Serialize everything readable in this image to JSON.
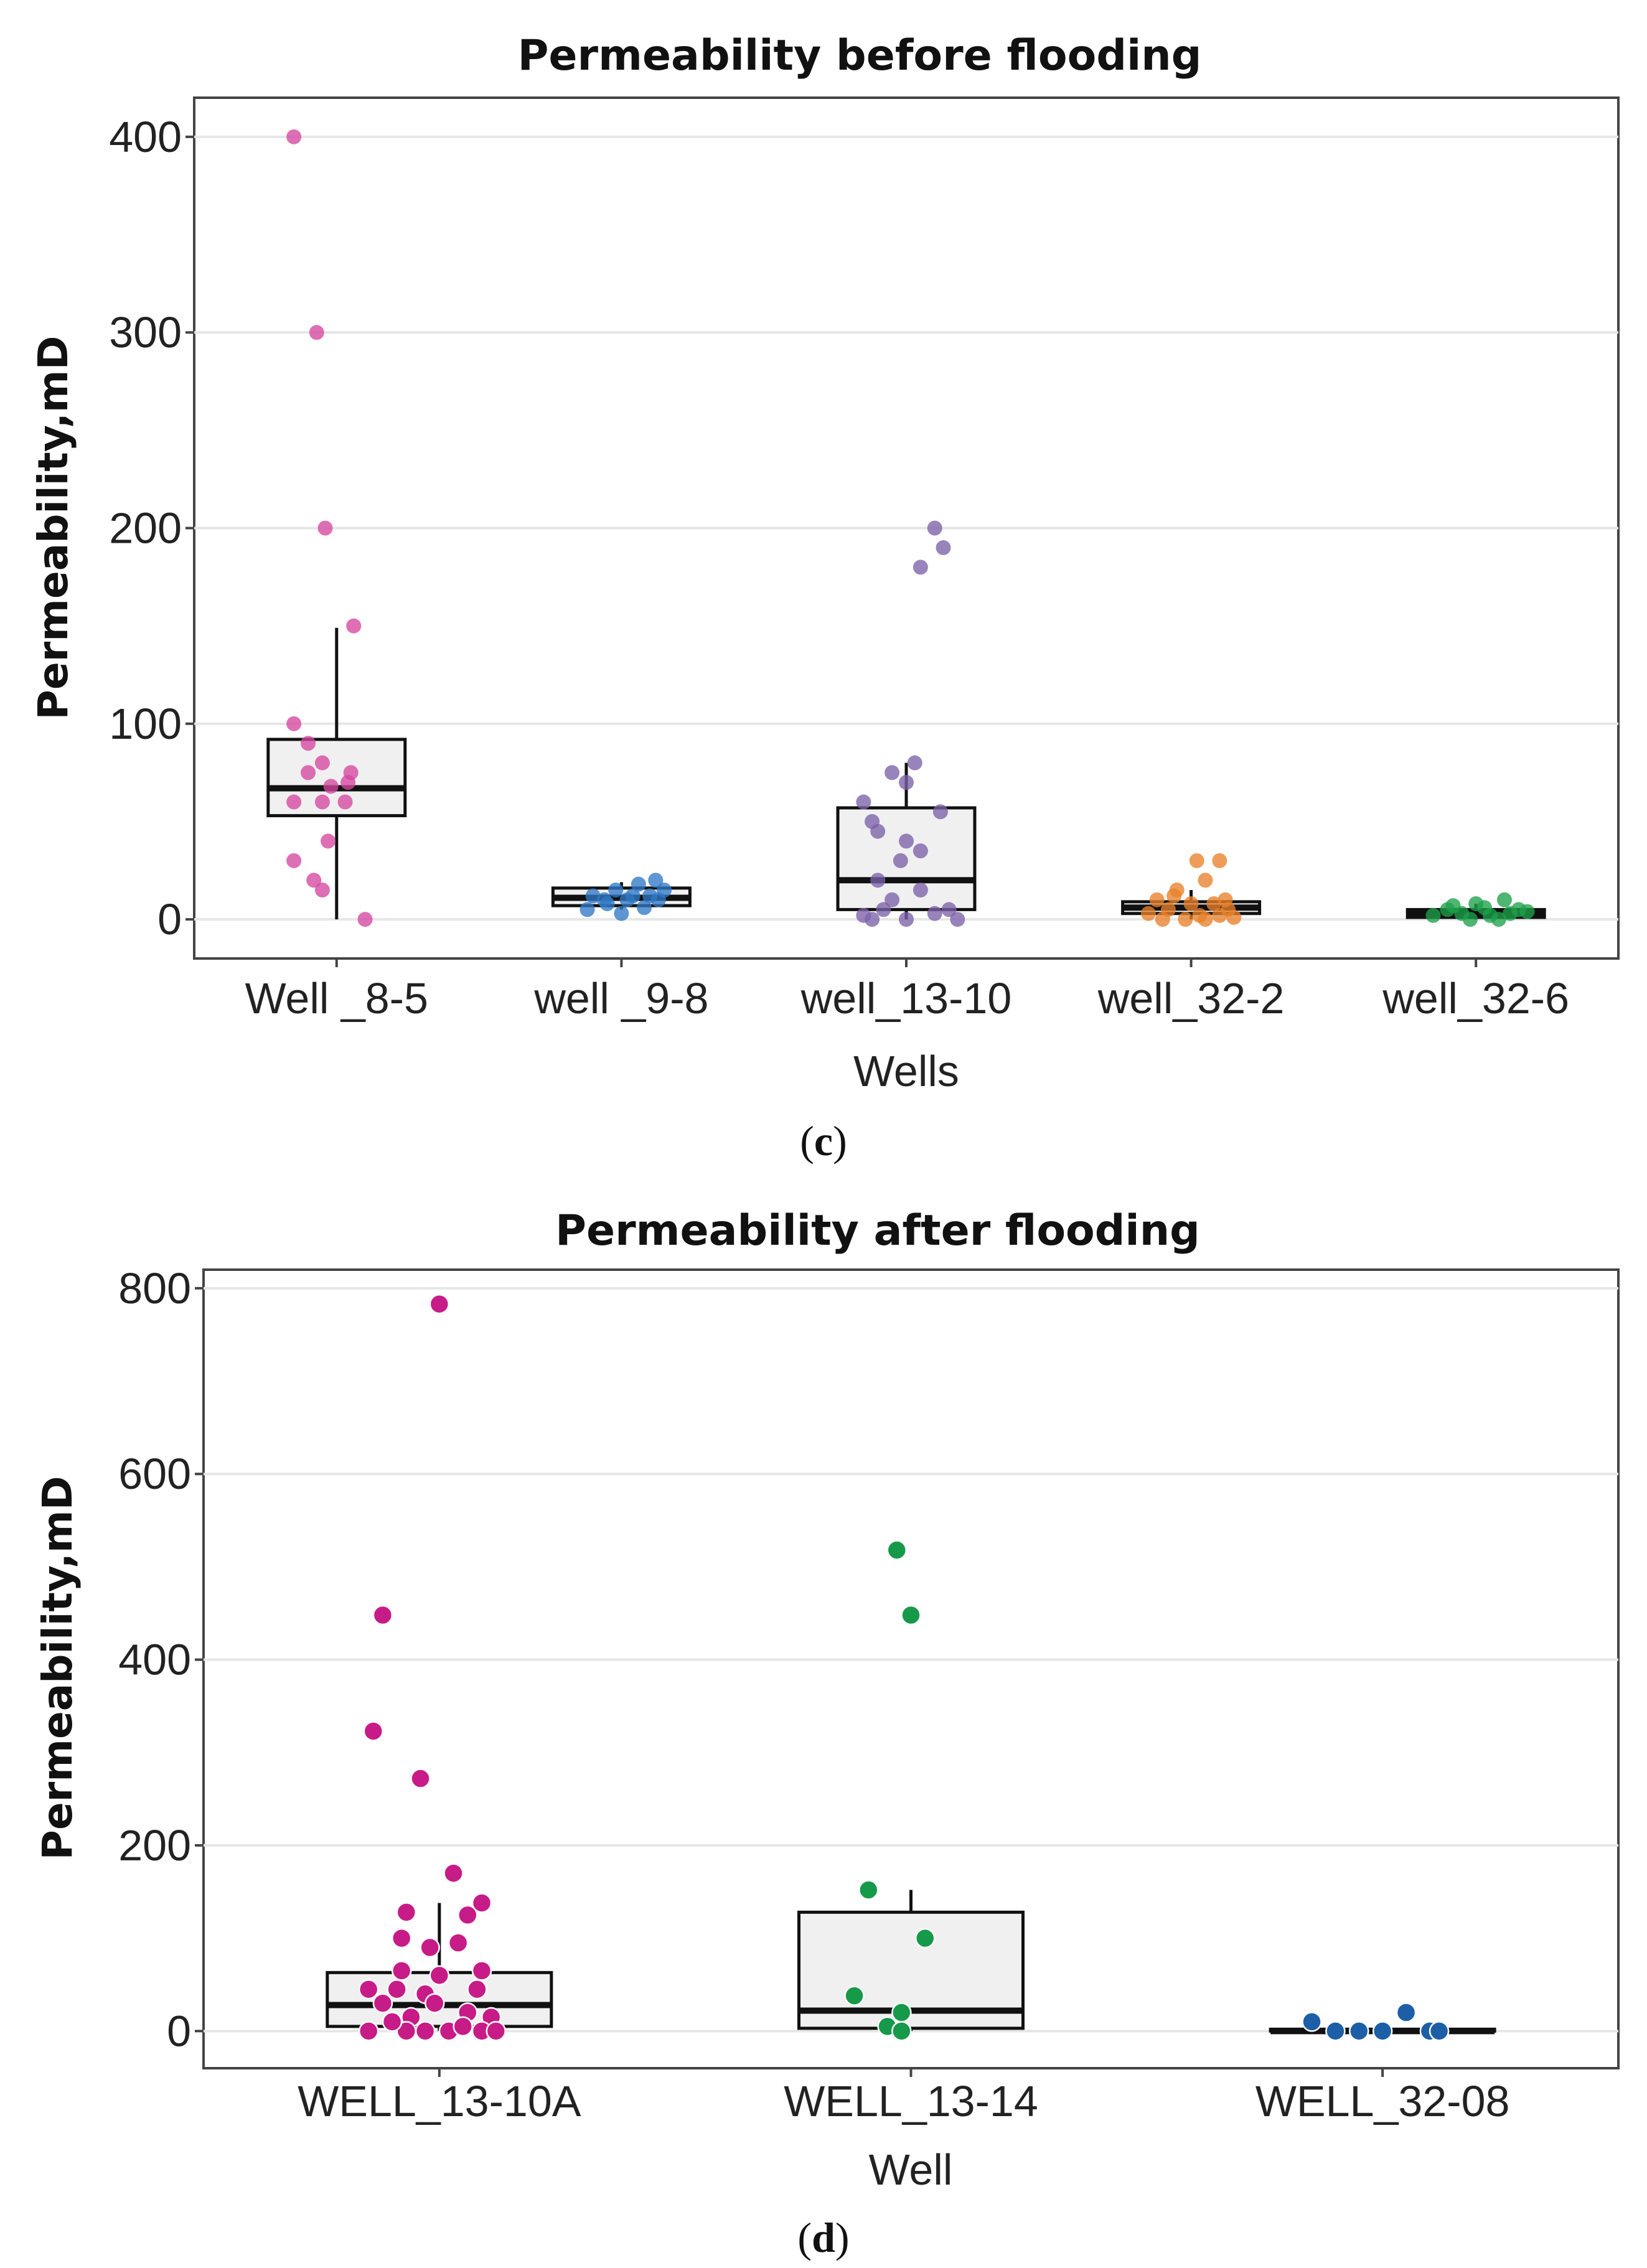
{
  "chart_data": [
    {
      "type": "box",
      "panel": "c",
      "title": "Permeability before flooding",
      "xlabel": "Wells",
      "ylabel": "Permeability,mD",
      "ylim": [
        -20,
        420
      ],
      "yticks": [
        0,
        100,
        200,
        300,
        400
      ],
      "categories": [
        "Well _8-5",
        "well _9-8",
        "well_13-10",
        "well_32-2",
        "well_32-6"
      ],
      "boxes": [
        {
          "q1": 53,
          "median": 67,
          "q3": 92,
          "whisker_low": 0,
          "whisker_high": 149
        },
        {
          "q1": 7,
          "median": 11,
          "q3": 16,
          "whisker_low": 5,
          "whisker_high": 19
        },
        {
          "q1": 5,
          "median": 20,
          "q3": 57,
          "whisker_low": 0,
          "whisker_high": 80
        },
        {
          "q1": 3,
          "median": 6,
          "q3": 9,
          "whisker_low": 0,
          "whisker_high": 15
        },
        {
          "q1": 1,
          "median": 3,
          "q3": 5,
          "whisker_low": 0,
          "whisker_high": 8
        }
      ],
      "colors": [
        "#d6479f",
        "#2f79c5",
        "#7b61a8",
        "#e8812a",
        "#1ea24a"
      ],
      "points": [
        [
          [
            -0.15,
            400
          ],
          [
            -0.07,
            300
          ],
          [
            -0.04,
            200
          ],
          [
            0.06,
            150
          ],
          [
            -0.15,
            100
          ],
          [
            -0.1,
            90
          ],
          [
            -0.05,
            80
          ],
          [
            0.05,
            75
          ],
          [
            -0.1,
            75
          ],
          [
            0.04,
            70
          ],
          [
            -0.02,
            68
          ],
          [
            -0.15,
            60
          ],
          [
            -0.05,
            60
          ],
          [
            0.03,
            60
          ],
          [
            -0.03,
            40
          ],
          [
            -0.15,
            30
          ],
          [
            -0.08,
            20
          ],
          [
            -0.05,
            15
          ],
          [
            0.1,
            0
          ]
        ],
        [
          [
            -0.12,
            5
          ],
          [
            -0.05,
            8
          ],
          [
            0.02,
            10
          ],
          [
            0.1,
            12
          ],
          [
            0.15,
            15
          ],
          [
            -0.1,
            12
          ],
          [
            0.06,
            18
          ],
          [
            0.12,
            20
          ],
          [
            -0.02,
            15
          ],
          [
            0.08,
            6
          ],
          [
            0.0,
            3
          ],
          [
            -0.06,
            10
          ],
          [
            0.13,
            10
          ],
          [
            0.04,
            12
          ]
        ],
        [
          [
            0.1,
            200
          ],
          [
            0.13,
            190
          ],
          [
            0.05,
            180
          ],
          [
            -0.05,
            75
          ],
          [
            0.0,
            70
          ],
          [
            -0.15,
            60
          ],
          [
            0.03,
            80
          ],
          [
            0.12,
            55
          ],
          [
            -0.12,
            50
          ],
          [
            -0.1,
            45
          ],
          [
            0.0,
            40
          ],
          [
            0.05,
            35
          ],
          [
            -0.02,
            30
          ],
          [
            -0.1,
            20
          ],
          [
            0.05,
            15
          ],
          [
            -0.05,
            10
          ],
          [
            0.15,
            5
          ],
          [
            -0.15,
            2
          ],
          [
            0.0,
            0
          ],
          [
            -0.12,
            0
          ],
          [
            0.1,
            3
          ],
          [
            0.18,
            0
          ],
          [
            -0.08,
            5
          ]
        ],
        [
          [
            0.1,
            30
          ],
          [
            0.02,
            30
          ],
          [
            0.05,
            20
          ],
          [
            -0.05,
            15
          ],
          [
            -0.12,
            10
          ],
          [
            0.0,
            8
          ],
          [
            0.08,
            8
          ],
          [
            -0.08,
            5
          ],
          [
            0.13,
            5
          ],
          [
            -0.15,
            3
          ],
          [
            0.03,
            2
          ],
          [
            0.1,
            2
          ],
          [
            -0.02,
            0
          ],
          [
            -0.1,
            0
          ],
          [
            0.05,
            0
          ],
          [
            0.15,
            1
          ],
          [
            -0.06,
            12
          ],
          [
            0.12,
            10
          ]
        ],
        [
          [
            -0.1,
            5
          ],
          [
            -0.05,
            3
          ],
          [
            0.0,
            8
          ],
          [
            0.05,
            2
          ],
          [
            0.1,
            10
          ],
          [
            0.15,
            5
          ],
          [
            -0.15,
            2
          ],
          [
            0.08,
            0
          ],
          [
            -0.02,
            0
          ],
          [
            0.03,
            6
          ],
          [
            0.12,
            3
          ],
          [
            -0.08,
            7
          ],
          [
            0.18,
            4
          ]
        ]
      ]
    },
    {
      "type": "box",
      "panel": "d",
      "title": "Permeability after flooding",
      "xlabel": "Well",
      "ylabel": "Permeability,mD",
      "ylim": [
        -40,
        820
      ],
      "yticks": [
        0,
        200,
        400,
        600,
        800
      ],
      "categories": [
        "WELL_13-10A",
        "WELL_13-14",
        "WELL_32-08"
      ],
      "boxes": [
        {
          "q1": 5,
          "median": 28,
          "q3": 63,
          "whisker_low": 0,
          "whisker_high": 138
        },
        {
          "q1": 3,
          "median": 22,
          "q3": 128,
          "whisker_low": 0,
          "whisker_high": 152
        },
        {
          "q1": 0,
          "median": 0,
          "q3": 2,
          "whisker_low": 0,
          "whisker_high": 2
        }
      ],
      "colors": [
        "#c71c87",
        "#169a4a",
        "#1c5fa6"
      ],
      "points": [
        [
          [
            0.0,
            783
          ],
          [
            -0.12,
            448
          ],
          [
            -0.14,
            323
          ],
          [
            -0.04,
            272
          ],
          [
            0.03,
            170
          ],
          [
            -0.07,
            128
          ],
          [
            0.09,
            138
          ],
          [
            -0.08,
            100
          ],
          [
            0.06,
            125
          ],
          [
            -0.02,
            90
          ],
          [
            0.04,
            95
          ],
          [
            -0.08,
            65
          ],
          [
            0.0,
            60
          ],
          [
            0.09,
            65
          ],
          [
            -0.15,
            45
          ],
          [
            -0.09,
            45
          ],
          [
            -0.03,
            40
          ],
          [
            0.08,
            45
          ],
          [
            -0.12,
            30
          ],
          [
            -0.01,
            30
          ],
          [
            0.06,
            20
          ],
          [
            -0.06,
            15
          ],
          [
            0.11,
            15
          ],
          [
            -0.15,
            0
          ],
          [
            -0.07,
            0
          ],
          [
            -0.03,
            0
          ],
          [
            0.02,
            0
          ],
          [
            0.09,
            0
          ],
          [
            0.12,
            0
          ],
          [
            0.05,
            5
          ],
          [
            -0.1,
            10
          ]
        ],
        [
          [
            -0.03,
            518
          ],
          [
            0.0,
            448
          ],
          [
            -0.09,
            152
          ],
          [
            0.03,
            100
          ],
          [
            -0.12,
            38
          ],
          [
            -0.02,
            20
          ],
          [
            -0.05,
            5
          ],
          [
            -0.02,
            0
          ]
        ],
        [
          [
            -0.15,
            10
          ],
          [
            -0.1,
            0
          ],
          [
            -0.05,
            0
          ],
          [
            0.0,
            0
          ],
          [
            0.05,
            20
          ],
          [
            0.1,
            0
          ],
          [
            0.12,
            0
          ]
        ]
      ]
    }
  ]
}
